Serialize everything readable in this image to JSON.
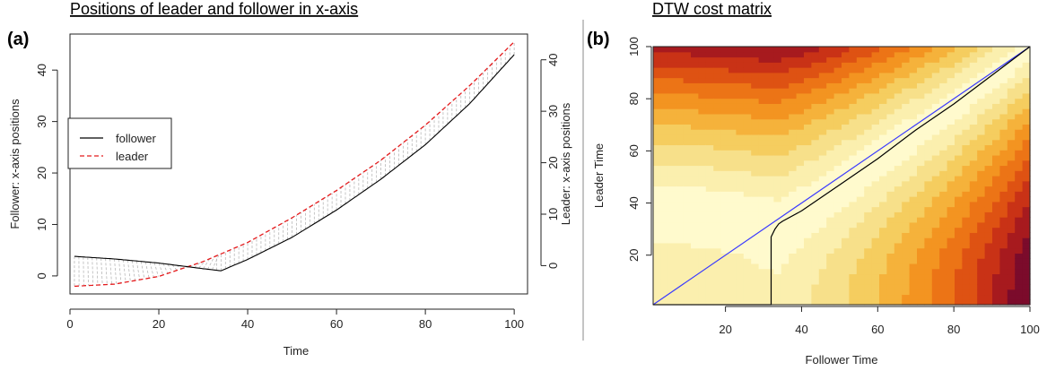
{
  "panel_a": {
    "title": "Positions of leader and follower in x-axis",
    "tag": "(a)",
    "xlabel": "Time",
    "ylabel_left": "Follower: x-axis positions",
    "ylabel_right": "Leader: x-axis positions",
    "legend": [
      {
        "label": "follower",
        "color": "#000000",
        "dash": "solid"
      },
      {
        "label": "leader",
        "color": "#e41a1c",
        "dash": "dashed"
      }
    ]
  },
  "panel_b": {
    "title": "DTW cost matrix",
    "tag": "(b)",
    "xlabel": "Follower Time",
    "ylabel": "Leader Time"
  },
  "chart_data": [
    {
      "type": "line",
      "title": "Positions of leader and follower in x-axis",
      "xlabel": "Time",
      "ylabel": "Follower: x-axis positions",
      "y2label": "Leader: x-axis positions",
      "xlim": [
        0,
        103
      ],
      "ylim": [
        -3.5,
        47
      ],
      "y2lim": [
        -5.5,
        45
      ],
      "xticks": [
        0,
        20,
        40,
        60,
        80,
        100
      ],
      "yticks": [
        0,
        10,
        20,
        30,
        40
      ],
      "y2ticks": [
        0,
        10,
        20,
        30,
        40
      ],
      "legend_position": "left-center",
      "grid": false,
      "series": [
        {
          "name": "follower",
          "axis": "left",
          "color": "#000000",
          "x": [
            1,
            10,
            20,
            30,
            34,
            40,
            50,
            60,
            70,
            80,
            90,
            100
          ],
          "values": [
            3.8,
            3.3,
            2.5,
            1.4,
            1.0,
            3.2,
            7.5,
            12.8,
            18.8,
            25.5,
            33.5,
            43
          ]
        },
        {
          "name": "leader",
          "axis": "right",
          "color": "#e41a1c",
          "x": [
            1,
            10,
            20,
            30,
            40,
            50,
            60,
            70,
            80,
            90,
            100
          ],
          "values": [
            -4,
            -3.6,
            -2.1,
            0.8,
            4.5,
            9.3,
            14.6,
            20.5,
            27.3,
            35.0,
            43.5
          ]
        }
      ],
      "alignment_lines": "dashed grey segments connecting aligned time points (DTW warping)"
    },
    {
      "type": "heatmap",
      "title": "DTW cost matrix",
      "xlabel": "Follower Time",
      "ylabel": "Leader Time",
      "xlim": [
        1,
        100
      ],
      "ylim": [
        1,
        100
      ],
      "xticks": [
        20,
        40,
        60,
        80,
        100
      ],
      "yticks": [
        20,
        40,
        60,
        80,
        100
      ],
      "colormap": [
        "#fffacd",
        "#fbefae",
        "#f7e08a",
        "#f5cd5f",
        "#f5b23b",
        "#f39421",
        "#ec7416",
        "#de5213",
        "#c93216",
        "#a71a1e",
        "#7b0b2b"
      ],
      "diagonal": {
        "color": "#3a3aff",
        "from": [
          1,
          1
        ],
        "to": [
          100,
          100
        ]
      },
      "warping_path": {
        "color": "#000000",
        "x": [
          1,
          32,
          32,
          33,
          34,
          35,
          40,
          50,
          60,
          70,
          80,
          90,
          100
        ],
        "y": [
          1,
          1,
          27,
          30,
          32,
          33,
          37,
          47,
          57,
          68,
          78,
          89,
          100
        ]
      }
    }
  ]
}
